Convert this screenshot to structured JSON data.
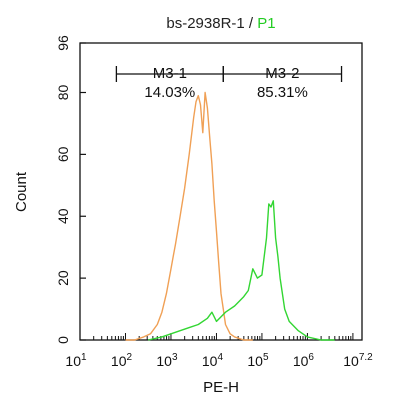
{
  "chart_data": {
    "type": "line",
    "title": {
      "sample": "bs-2938R-1",
      "separator": " / ",
      "gate": "P1"
    },
    "xlabel": "PE-H",
    "ylabel": "Count",
    "xscale": "log10",
    "xlim": [
      1,
      7.2
    ],
    "ylim": [
      0,
      96
    ],
    "yticks": [
      0,
      20,
      40,
      60,
      80,
      96
    ],
    "xticks": [
      {
        "base": "10",
        "exp": "1"
      },
      {
        "base": "10",
        "exp": "2"
      },
      {
        "base": "10",
        "exp": "3"
      },
      {
        "base": "10",
        "exp": "4"
      },
      {
        "base": "10",
        "exp": "5"
      },
      {
        "base": "10",
        "exp": "6"
      },
      {
        "base": "10",
        "exp": "7.2"
      }
    ],
    "grid": false,
    "colors": {
      "control": "#f0a055",
      "sample": "#33d633",
      "gate_text": "#22cc22"
    },
    "series": [
      {
        "color": "#f0a055",
        "x": [
          2.0,
          2.2,
          2.4,
          2.55,
          2.7,
          2.8,
          2.9,
          3.0,
          3.05,
          3.1,
          3.2,
          3.3,
          3.4,
          3.5,
          3.55,
          3.6,
          3.65,
          3.7,
          3.75,
          3.8,
          3.85,
          3.9,
          3.95,
          4.0,
          4.05,
          4.1,
          4.15,
          4.2,
          4.3,
          4.4,
          4.6,
          4.8
        ],
        "y": [
          0,
          0,
          1,
          2,
          5,
          9,
          15,
          23,
          27,
          31,
          40,
          49,
          60,
          72,
          77,
          79,
          76,
          67,
          80,
          75,
          66,
          57,
          45,
          35,
          25,
          15,
          10,
          5,
          2,
          1,
          0,
          0
        ]
      },
      {
        "color": "#33d633",
        "x": [
          2.5,
          2.8,
          3.0,
          3.2,
          3.4,
          3.6,
          3.8,
          3.9,
          4.0,
          4.2,
          4.4,
          4.6,
          4.7,
          4.8,
          4.9,
          5.0,
          5.1,
          5.15,
          5.2,
          5.25,
          5.3,
          5.35,
          5.4,
          5.5,
          5.6,
          5.8,
          6.0,
          6.3,
          6.6
        ],
        "y": [
          0,
          1,
          2,
          3,
          4,
          5,
          7,
          9,
          6,
          9,
          11,
          14,
          16,
          23,
          20,
          21,
          33,
          44,
          43,
          45,
          33,
          27,
          20,
          10,
          6,
          3,
          1,
          0,
          0
        ]
      }
    ],
    "markers": [
      {
        "name": "M3-1",
        "percent": "14.03%",
        "x_range": [
          1.8,
          4.15
        ]
      },
      {
        "name": "M3-2",
        "percent": "85.31%",
        "x_range": [
          4.15,
          6.75
        ]
      }
    ]
  }
}
